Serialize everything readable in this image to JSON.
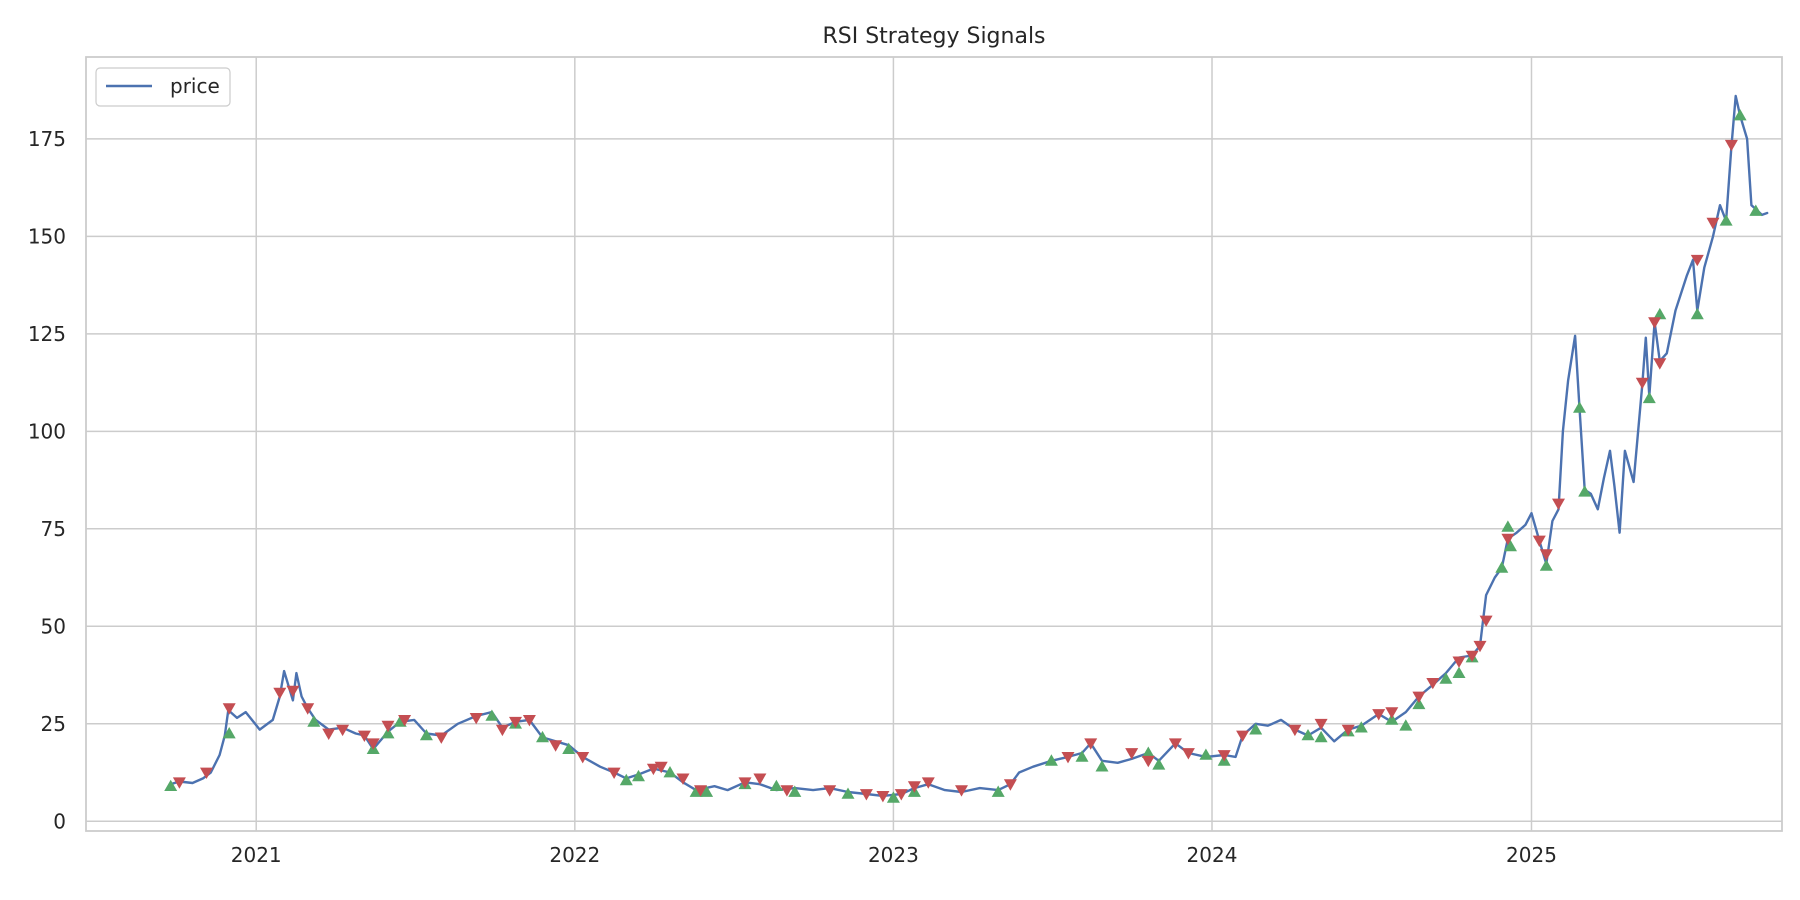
{
  "chart_data": {
    "type": "line",
    "title": "RSI Strategy Signals",
    "xlabel": "",
    "ylabel": "",
    "x_range": [
      "2020-06-20",
      "2025-10-15"
    ],
    "ylim": [
      -2.5,
      196
    ],
    "x_ticks": [
      {
        "date": "2021-01-01",
        "label": "2021"
      },
      {
        "date": "2022-01-01",
        "label": "2022"
      },
      {
        "date": "2023-01-01",
        "label": "2023"
      },
      {
        "date": "2024-01-01",
        "label": "2024"
      },
      {
        "date": "2025-01-01",
        "label": "2025"
      }
    ],
    "y_ticks": [
      0,
      25,
      50,
      75,
      100,
      125,
      150,
      175
    ],
    "grid": true,
    "legend": {
      "placement": "upper-left",
      "entries": [
        "price"
      ]
    },
    "colors": {
      "price": "#4c72b0",
      "buy": "#55a868",
      "sell": "#c44e52",
      "grid": "#cccccc",
      "axes_edge": "#cccccc",
      "text": "#262626"
    },
    "series": [
      {
        "name": "price",
        "points": [
          [
            "2020-09-25",
            9.5
          ],
          [
            "2020-10-05",
            10.2
          ],
          [
            "2020-10-20",
            9.8
          ],
          [
            "2020-11-01",
            11.0
          ],
          [
            "2020-11-10",
            12.5
          ],
          [
            "2020-11-20",
            17.0
          ],
          [
            "2020-11-26",
            22.0
          ],
          [
            "2020-11-30",
            28.5
          ],
          [
            "2020-12-10",
            26.5
          ],
          [
            "2020-12-20",
            28.0
          ],
          [
            "2021-01-05",
            23.5
          ],
          [
            "2021-01-20",
            26.0
          ],
          [
            "2021-01-28",
            32.0
          ],
          [
            "2021-02-02",
            38.5
          ],
          [
            "2021-02-08",
            34.0
          ],
          [
            "2021-02-12",
            31.0
          ],
          [
            "2021-02-16",
            38.0
          ],
          [
            "2021-02-22",
            32.0
          ],
          [
            "2021-03-01",
            29.0
          ],
          [
            "2021-03-10",
            26.0
          ],
          [
            "2021-03-25",
            23.5
          ],
          [
            "2021-04-10",
            24.0
          ],
          [
            "2021-04-25",
            22.5
          ],
          [
            "2021-05-05",
            22.0
          ],
          [
            "2021-05-15",
            18.5
          ],
          [
            "2021-06-01",
            23.0
          ],
          [
            "2021-06-15",
            25.5
          ],
          [
            "2021-07-01",
            26.0
          ],
          [
            "2021-07-15",
            22.5
          ],
          [
            "2021-08-01",
            22.0
          ],
          [
            "2021-08-20",
            25.0
          ],
          [
            "2021-09-10",
            27.0
          ],
          [
            "2021-09-28",
            28.0
          ],
          [
            "2021-10-10",
            24.0
          ],
          [
            "2021-10-25",
            25.5
          ],
          [
            "2021-11-10",
            26.0
          ],
          [
            "2021-11-25",
            21.5
          ],
          [
            "2021-12-10",
            20.5
          ],
          [
            "2021-12-25",
            19.5
          ],
          [
            "2022-01-10",
            16.5
          ],
          [
            "2022-01-30",
            14.0
          ],
          [
            "2022-02-15",
            12.5
          ],
          [
            "2022-03-01",
            11.0
          ],
          [
            "2022-03-15",
            12.0
          ],
          [
            "2022-04-01",
            13.5
          ],
          [
            "2022-04-20",
            12.5
          ],
          [
            "2022-05-05",
            10.0
          ],
          [
            "2022-05-20",
            8.0
          ],
          [
            "2022-06-10",
            9.0
          ],
          [
            "2022-06-25",
            8.0
          ],
          [
            "2022-07-15",
            10.0
          ],
          [
            "2022-08-01",
            9.5
          ],
          [
            "2022-08-20",
            8.0
          ],
          [
            "2022-09-10",
            8.5
          ],
          [
            "2022-10-01",
            8.0
          ],
          [
            "2022-10-20",
            8.5
          ],
          [
            "2022-11-10",
            7.5
          ],
          [
            "2022-12-01",
            7.0
          ],
          [
            "2022-12-20",
            6.5
          ],
          [
            "2023-01-10",
            7.0
          ],
          [
            "2023-01-25",
            8.5
          ],
          [
            "2023-02-10",
            9.5
          ],
          [
            "2023-03-01",
            8.0
          ],
          [
            "2023-03-20",
            7.5
          ],
          [
            "2023-04-10",
            8.5
          ],
          [
            "2023-05-01",
            8.0
          ],
          [
            "2023-05-15",
            9.5
          ],
          [
            "2023-05-25",
            12.5
          ],
          [
            "2023-06-10",
            14.0
          ],
          [
            "2023-07-01",
            15.5
          ],
          [
            "2023-07-20",
            16.5
          ],
          [
            "2023-08-05",
            17.5
          ],
          [
            "2023-08-15",
            20.0
          ],
          [
            "2023-08-28",
            15.5
          ],
          [
            "2023-09-15",
            15.0
          ],
          [
            "2023-10-01",
            16.0
          ],
          [
            "2023-10-20",
            17.5
          ],
          [
            "2023-11-01",
            15.5
          ],
          [
            "2023-11-20",
            20.0
          ],
          [
            "2023-12-05",
            17.5
          ],
          [
            "2023-12-25",
            16.5
          ],
          [
            "2024-01-15",
            17.0
          ],
          [
            "2024-01-28",
            16.5
          ],
          [
            "2024-02-05",
            22.0
          ],
          [
            "2024-02-20",
            25.0
          ],
          [
            "2024-03-05",
            24.5
          ],
          [
            "2024-03-20",
            26.0
          ],
          [
            "2024-04-05",
            23.5
          ],
          [
            "2024-04-20",
            22.0
          ],
          [
            "2024-05-05",
            24.0
          ],
          [
            "2024-05-20",
            20.5
          ],
          [
            "2024-06-05",
            23.5
          ],
          [
            "2024-06-20",
            24.5
          ],
          [
            "2024-07-10",
            27.5
          ],
          [
            "2024-07-25",
            25.5
          ],
          [
            "2024-08-10",
            28.0
          ],
          [
            "2024-08-25",
            32.0
          ],
          [
            "2024-09-10",
            35.0
          ],
          [
            "2024-09-25",
            38.0
          ],
          [
            "2024-10-10",
            42.0
          ],
          [
            "2024-10-25",
            42.5
          ],
          [
            "2024-11-03",
            45.0
          ],
          [
            "2024-11-10",
            58.0
          ],
          [
            "2024-11-20",
            62.5
          ],
          [
            "2024-11-28",
            65.0
          ],
          [
            "2024-12-05",
            72.5
          ],
          [
            "2024-12-15",
            74.0
          ],
          [
            "2024-12-25",
            76.0
          ],
          [
            "2025-01-01",
            79.0
          ],
          [
            "2025-01-10",
            72.0
          ],
          [
            "2025-01-18",
            66.0
          ],
          [
            "2025-01-25",
            77.0
          ],
          [
            "2025-02-01",
            80.0
          ],
          [
            "2025-02-06",
            100.0
          ],
          [
            "2025-02-12",
            113.0
          ],
          [
            "2025-02-20",
            124.5
          ],
          [
            "2025-02-25",
            106.0
          ],
          [
            "2025-03-03",
            85.0
          ],
          [
            "2025-03-10",
            84.0
          ],
          [
            "2025-03-18",
            80.0
          ],
          [
            "2025-03-25",
            88.0
          ],
          [
            "2025-04-01",
            95.0
          ],
          [
            "2025-04-06",
            86.0
          ],
          [
            "2025-04-12",
            74.0
          ],
          [
            "2025-04-18",
            95.0
          ],
          [
            "2025-04-28",
            87.0
          ],
          [
            "2025-05-08",
            112.0
          ],
          [
            "2025-05-12",
            124.0
          ],
          [
            "2025-05-16",
            109.0
          ],
          [
            "2025-05-22",
            128.0
          ],
          [
            "2025-05-28",
            118.0
          ],
          [
            "2025-06-05",
            120.0
          ],
          [
            "2025-06-15",
            131.0
          ],
          [
            "2025-06-28",
            140.0
          ],
          [
            "2025-07-05",
            144.0
          ],
          [
            "2025-07-10",
            131.0
          ],
          [
            "2025-07-18",
            142.0
          ],
          [
            "2025-07-28",
            150.0
          ],
          [
            "2025-08-05",
            158.0
          ],
          [
            "2025-08-12",
            154.0
          ],
          [
            "2025-08-18",
            173.0
          ],
          [
            "2025-08-23",
            186.0
          ],
          [
            "2025-08-28",
            181.0
          ],
          [
            "2025-09-05",
            175.0
          ],
          [
            "2025-09-10",
            158.0
          ],
          [
            "2025-09-15",
            157.0
          ],
          [
            "2025-09-22",
            155.5
          ],
          [
            "2025-09-28",
            156.0
          ]
        ]
      }
    ],
    "buy_signals": [
      [
        "2020-09-25",
        9.0
      ],
      [
        "2020-12-01",
        22.5
      ],
      [
        "2021-03-08",
        25.5
      ],
      [
        "2021-05-15",
        18.5
      ],
      [
        "2021-06-01",
        22.5
      ],
      [
        "2021-06-15",
        25.5
      ],
      [
        "2021-07-15",
        22.0
      ],
      [
        "2021-09-28",
        27.0
      ],
      [
        "2021-10-25",
        25.0
      ],
      [
        "2021-11-25",
        21.5
      ],
      [
        "2021-12-25",
        18.5
      ],
      [
        "2022-03-01",
        10.5
      ],
      [
        "2022-03-15",
        11.5
      ],
      [
        "2022-04-20",
        12.5
      ],
      [
        "2022-05-20",
        7.5
      ],
      [
        "2022-06-01",
        7.5
      ],
      [
        "2022-07-15",
        9.5
      ],
      [
        "2022-08-20",
        9.0
      ],
      [
        "2022-09-10",
        7.5
      ],
      [
        "2022-11-10",
        7.0
      ],
      [
        "2023-01-01",
        6.0
      ],
      [
        "2023-01-25",
        7.5
      ],
      [
        "2023-05-01",
        7.5
      ],
      [
        "2023-07-01",
        15.5
      ],
      [
        "2023-08-05",
        16.5
      ],
      [
        "2023-08-28",
        14.0
      ],
      [
        "2023-10-20",
        17.5
      ],
      [
        "2023-11-01",
        14.5
      ],
      [
        "2023-12-25",
        17.0
      ],
      [
        "2024-01-15",
        15.5
      ],
      [
        "2024-02-20",
        23.5
      ],
      [
        "2024-04-20",
        22.0
      ],
      [
        "2024-05-05",
        21.5
      ],
      [
        "2024-06-05",
        23.0
      ],
      [
        "2024-06-20",
        24.0
      ],
      [
        "2024-07-25",
        26.0
      ],
      [
        "2024-08-10",
        24.5
      ],
      [
        "2024-08-25",
        30.0
      ],
      [
        "2024-09-25",
        36.5
      ],
      [
        "2024-10-10",
        38.0
      ],
      [
        "2024-10-25",
        42.0
      ],
      [
        "2024-11-28",
        65.0
      ],
      [
        "2024-12-05",
        75.5
      ],
      [
        "2024-12-08",
        70.5
      ],
      [
        "2025-01-18",
        65.5
      ],
      [
        "2025-02-25",
        106.0
      ],
      [
        "2025-03-03",
        84.5
      ],
      [
        "2025-05-16",
        108.5
      ],
      [
        "2025-05-28",
        130.0
      ],
      [
        "2025-07-10",
        130.0
      ],
      [
        "2025-08-12",
        154.0
      ],
      [
        "2025-08-28",
        181.0
      ],
      [
        "2025-09-15",
        156.5
      ]
    ],
    "sell_signals": [
      [
        "2020-10-05",
        10.0
      ],
      [
        "2020-11-05",
        12.5
      ],
      [
        "2020-12-01",
        29.0
      ],
      [
        "2021-01-28",
        33.0
      ],
      [
        "2021-02-12",
        33.5
      ],
      [
        "2021-03-01",
        29.0
      ],
      [
        "2021-03-25",
        22.5
      ],
      [
        "2021-04-10",
        23.5
      ],
      [
        "2021-05-05",
        22.0
      ],
      [
        "2021-05-15",
        20.0
      ],
      [
        "2021-06-01",
        24.5
      ],
      [
        "2021-06-20",
        26.0
      ],
      [
        "2021-08-01",
        21.5
      ],
      [
        "2021-09-10",
        26.5
      ],
      [
        "2021-10-10",
        23.5
      ],
      [
        "2021-10-25",
        25.5
      ],
      [
        "2021-11-10",
        26.0
      ],
      [
        "2021-12-10",
        19.5
      ],
      [
        "2022-01-10",
        16.5
      ],
      [
        "2022-02-15",
        12.5
      ],
      [
        "2022-04-01",
        13.5
      ],
      [
        "2022-04-10",
        14.0
      ],
      [
        "2022-05-05",
        11.0
      ],
      [
        "2022-05-25",
        8.0
      ],
      [
        "2022-07-15",
        10.0
      ],
      [
        "2022-08-01",
        11.0
      ],
      [
        "2022-09-01",
        8.0
      ],
      [
        "2022-10-20",
        8.0
      ],
      [
        "2022-12-01",
        7.0
      ],
      [
        "2022-12-20",
        6.5
      ],
      [
        "2023-01-10",
        7.0
      ],
      [
        "2023-01-25",
        9.0
      ],
      [
        "2023-02-10",
        10.0
      ],
      [
        "2023-03-20",
        8.0
      ],
      [
        "2023-05-15",
        9.5
      ],
      [
        "2023-07-20",
        16.5
      ],
      [
        "2023-08-15",
        20.0
      ],
      [
        "2023-10-01",
        17.5
      ],
      [
        "2023-10-20",
        15.5
      ],
      [
        "2023-11-20",
        20.0
      ],
      [
        "2023-12-05",
        17.5
      ],
      [
        "2024-01-15",
        17.0
      ],
      [
        "2024-02-05",
        22.0
      ],
      [
        "2024-04-05",
        23.5
      ],
      [
        "2024-05-05",
        25.0
      ],
      [
        "2024-06-05",
        23.5
      ],
      [
        "2024-07-10",
        27.5
      ],
      [
        "2024-07-25",
        28.0
      ],
      [
        "2024-08-25",
        32.0
      ],
      [
        "2024-09-10",
        35.5
      ],
      [
        "2024-10-10",
        41.0
      ],
      [
        "2024-10-25",
        42.5
      ],
      [
        "2024-11-03",
        45.0
      ],
      [
        "2024-11-10",
        51.5
      ],
      [
        "2024-12-05",
        72.5
      ],
      [
        "2025-01-10",
        72.0
      ],
      [
        "2025-01-18",
        68.5
      ],
      [
        "2025-02-01",
        81.5
      ],
      [
        "2025-05-08",
        112.5
      ],
      [
        "2025-05-22",
        128.0
      ],
      [
        "2025-05-28",
        117.5
      ],
      [
        "2025-07-10",
        144.0
      ],
      [
        "2025-07-28",
        153.5
      ],
      [
        "2025-08-18",
        173.5
      ]
    ]
  }
}
